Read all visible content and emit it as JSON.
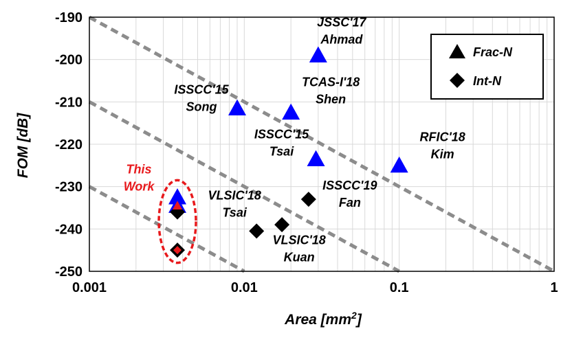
{
  "chart_data": {
    "type": "scatter",
    "xscale": "log",
    "xlabel": "Area [mm",
    "xlabel_sup": "2",
    "xlabel_end": "]",
    "ylabel": "FOM [dB]",
    "xlim": [
      0.001,
      1
    ],
    "ylim": [
      -250,
      -190
    ],
    "xticks": [
      {
        "value": 0.001,
        "label": "0.001"
      },
      {
        "value": 0.01,
        "label": "0.01"
      },
      {
        "value": 0.1,
        "label": "0.1"
      },
      {
        "value": 1,
        "label": "1"
      }
    ],
    "yticks": [
      -190,
      -200,
      -210,
      -220,
      -230,
      -240,
      -250
    ],
    "grid": true,
    "legend": {
      "position": "top-right",
      "entries": [
        {
          "label": "Frac-N",
          "marker": "triangle"
        },
        {
          "label": "Int-N",
          "marker": "diamond"
        }
      ]
    },
    "colors": {
      "triangle": "#0000ff",
      "diamond": "#000000",
      "highlight": "#e8191c",
      "fom_line": "#8c8c8c",
      "grid": "#d9d9d9"
    },
    "series": [
      {
        "marker": "triangle",
        "points": [
          {
            "x": 0.03,
            "y": -199
          },
          {
            "x": 0.009,
            "y": -211.5
          },
          {
            "x": 0.02,
            "y": -212.5
          },
          {
            "x": 0.029,
            "y": -223.5
          },
          {
            "x": 0.1,
            "y": -225
          },
          {
            "x": 0.0037,
            "y": -232.5
          },
          {
            "x": 0.0037,
            "y": -234.5
          }
        ]
      },
      {
        "marker": "diamond",
        "points": [
          {
            "x": 0.026,
            "y": -233
          },
          {
            "x": 0.012,
            "y": -240.5
          },
          {
            "x": 0.0175,
            "y": -239
          },
          {
            "x": 0.0037,
            "y": -236
          }
        ]
      }
    ],
    "highlight_points": [
      {
        "marker": "triangle",
        "x": 0.0037,
        "y": -234.5
      },
      {
        "marker": "diamond",
        "x": 0.0037,
        "y": -245
      }
    ],
    "highlight_ellipse": {
      "x": 0.0037,
      "y_top": -228.5,
      "y_bottom": -248
    },
    "fom_lines": [
      {
        "x1": 0.001,
        "y1": -190,
        "x2": 1,
        "y2": -250
      },
      {
        "x1": 0.001,
        "y1": -210,
        "x2": 0.1,
        "y2": -250
      },
      {
        "x1": 0.001,
        "y1": -230,
        "x2": 0.01,
        "y2": -250
      }
    ],
    "annotations": [
      {
        "lines": [
          "JSSC'17",
          "Ahmad"
        ],
        "x": 0.03,
        "y": -198,
        "dx": 34,
        "dy": -36,
        "anchor": "middle"
      },
      {
        "lines": [
          "ISSCC'15",
          "Song"
        ],
        "x": 0.009,
        "y": -210,
        "dx": -52,
        "dy": -12,
        "anchor": "middle"
      },
      {
        "lines": [
          "TCAS-I'18",
          "Shen"
        ],
        "x": 0.02,
        "y": -210,
        "dx": 58,
        "dy": -23,
        "anchor": "middle"
      },
      {
        "lines": [
          "ISSCC'15",
          "Tsai"
        ],
        "x": 0.029,
        "y": -222,
        "dx": -50,
        "dy": -21,
        "anchor": "middle"
      },
      {
        "lines": [
          "RFIC'18",
          "Kim"
        ],
        "x": 0.1,
        "y": -222,
        "dx": 63,
        "dy": -17,
        "anchor": "middle"
      },
      {
        "lines": [
          "ISSCC'19",
          "Fan"
        ],
        "x": 0.026,
        "y": -233,
        "dx": 60,
        "dy": -14,
        "anchor": "middle"
      },
      {
        "lines": [
          "VLSIC'18",
          "Tsai"
        ],
        "x": 0.012,
        "y": -240,
        "dx": -32,
        "dy": -43,
        "anchor": "middle"
      },
      {
        "lines": [
          "VLSIC'18",
          "Kuan"
        ],
        "x": 0.0175,
        "y": -240,
        "dx": 25,
        "dy": 22,
        "anchor": "middle"
      },
      {
        "lines": [
          "This",
          "Work"
        ],
        "x": 0.0037,
        "y": -230,
        "dx": -56,
        "dy": -19,
        "anchor": "middle",
        "color": "red"
      }
    ]
  }
}
